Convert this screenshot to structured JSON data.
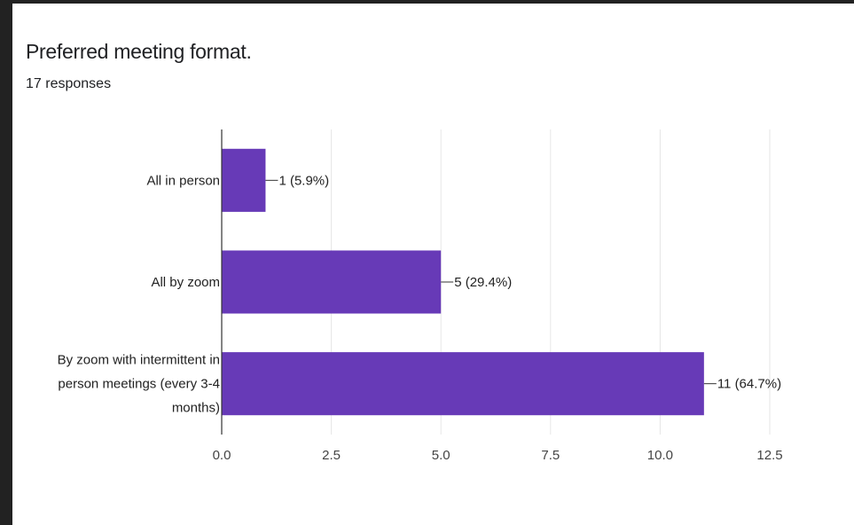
{
  "header": {
    "title": "Preferred meeting format.",
    "responses": "17 responses"
  },
  "chart_data": {
    "type": "bar",
    "orientation": "horizontal",
    "categories": [
      [
        "All in person"
      ],
      [
        "All by zoom"
      ],
      [
        "By zoom with intermittent in",
        "person meetings (every 3-4",
        "months)"
      ]
    ],
    "values": [
      1,
      5,
      11
    ],
    "data_labels": [
      "1 (5.9%)",
      "5 (29.4%)",
      "11 (64.7%)"
    ],
    "xlim": [
      0,
      12.5
    ],
    "x_ticks": [
      "0.0",
      "2.5",
      "5.0",
      "7.5",
      "10.0",
      "12.5"
    ],
    "grid": true,
    "colors": {
      "bar": "#673ab7",
      "grid": "#e6e6e6",
      "axis": "#333333"
    }
  }
}
